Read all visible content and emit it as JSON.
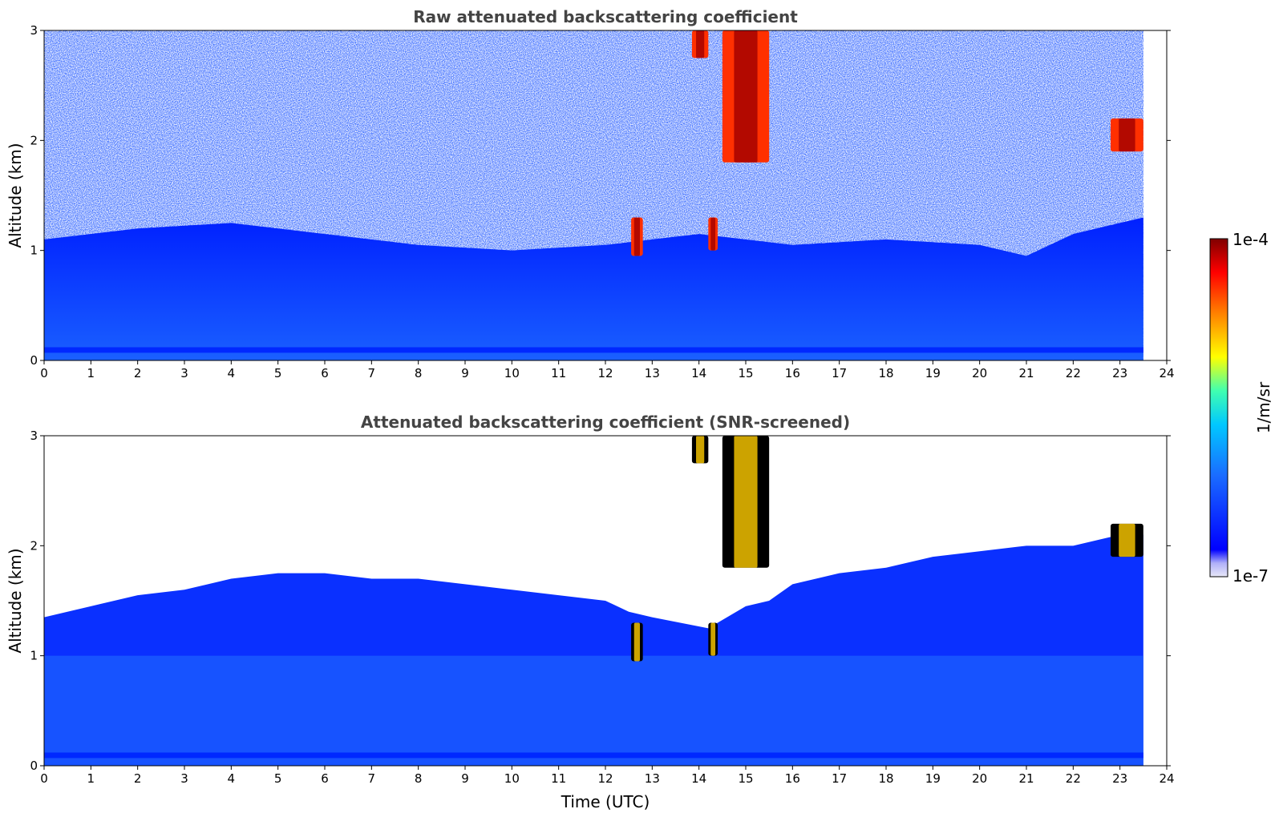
{
  "chart_data": [
    {
      "type": "heatmap",
      "title": "Raw attenuated backscattering coefficient",
      "xlabel": "",
      "ylabel": "Altitude (km)",
      "xlim": [
        0,
        24
      ],
      "ylim": [
        0,
        3
      ],
      "xticks": [
        "0",
        "1",
        "2",
        "3",
        "4",
        "5",
        "6",
        "7",
        "8",
        "9",
        "10",
        "11",
        "12",
        "13",
        "14",
        "15",
        "16",
        "17",
        "18",
        "19",
        "20",
        "21",
        "22",
        "23",
        "24"
      ],
      "yticks": [
        "0",
        "1",
        "2",
        "3"
      ],
      "data_extent_x": [
        0,
        23.5
      ],
      "boundary_layer_top_km": [
        [
          0,
          1.1
        ],
        [
          2,
          1.2
        ],
        [
          4,
          1.25
        ],
        [
          6,
          1.15
        ],
        [
          8,
          1.05
        ],
        [
          10,
          1.0
        ],
        [
          12,
          1.05
        ],
        [
          13,
          1.1
        ],
        [
          14,
          1.15
        ],
        [
          16,
          1.05
        ],
        [
          18,
          1.1
        ],
        [
          20,
          1.05
        ],
        [
          21,
          0.95
        ],
        [
          22,
          1.15
        ],
        [
          23.5,
          1.3
        ]
      ],
      "cloud_features": [
        {
          "x_start": 12.55,
          "x_end": 12.8,
          "y_bottom": 0.95,
          "y_top": 1.3
        },
        {
          "x_start": 14.2,
          "x_end": 14.4,
          "y_bottom": 1.0,
          "y_top": 1.3
        },
        {
          "x_start": 14.5,
          "x_end": 15.5,
          "y_bottom": 1.8,
          "y_top": 3.0
        },
        {
          "x_start": 13.85,
          "x_end": 14.2,
          "y_bottom": 2.75,
          "y_top": 3.0
        },
        {
          "x_start": 22.8,
          "x_end": 23.5,
          "y_bottom": 1.9,
          "y_top": 2.2
        }
      ]
    },
    {
      "type": "heatmap",
      "title": "Attenuated backscattering coefficient (SNR-screened)",
      "xlabel": "Time (UTC)",
      "ylabel": "Altitude (km)",
      "xlim": [
        0,
        24
      ],
      "ylim": [
        0,
        3
      ],
      "xticks": [
        "0",
        "1",
        "2",
        "3",
        "4",
        "5",
        "6",
        "7",
        "8",
        "9",
        "10",
        "11",
        "12",
        "13",
        "14",
        "15",
        "16",
        "17",
        "18",
        "19",
        "20",
        "21",
        "22",
        "23",
        "24"
      ],
      "yticks": [
        "0",
        "1",
        "2",
        "3"
      ],
      "data_extent_x": [
        0,
        23.5
      ],
      "screened_top_km": [
        [
          0,
          1.35
        ],
        [
          1,
          1.45
        ],
        [
          2,
          1.55
        ],
        [
          3,
          1.6
        ],
        [
          4,
          1.7
        ],
        [
          5,
          1.75
        ],
        [
          6,
          1.75
        ],
        [
          7,
          1.7
        ],
        [
          8,
          1.7
        ],
        [
          9,
          1.65
        ],
        [
          10,
          1.6
        ],
        [
          11,
          1.55
        ],
        [
          12,
          1.5
        ],
        [
          12.5,
          1.4
        ],
        [
          13,
          1.35
        ],
        [
          13.6,
          1.3
        ],
        [
          14.2,
          1.25
        ],
        [
          15,
          1.45
        ],
        [
          15.5,
          1.5
        ],
        [
          16,
          1.65
        ],
        [
          17,
          1.75
        ],
        [
          18,
          1.8
        ],
        [
          19,
          1.9
        ],
        [
          20,
          1.95
        ],
        [
          21,
          2.0
        ],
        [
          22,
          2.0
        ],
        [
          23,
          2.1
        ],
        [
          23.5,
          2.1
        ]
      ],
      "cloud_features": [
        {
          "x_start": 12.55,
          "x_end": 12.8,
          "y_bottom": 0.95,
          "y_top": 1.3
        },
        {
          "x_start": 14.2,
          "x_end": 14.4,
          "y_bottom": 1.0,
          "y_top": 1.3
        },
        {
          "x_start": 14.5,
          "x_end": 15.5,
          "y_bottom": 1.8,
          "y_top": 3.0
        },
        {
          "x_start": 13.85,
          "x_end": 14.2,
          "y_bottom": 2.75,
          "y_top": 3.0
        },
        {
          "x_start": 22.8,
          "x_end": 23.5,
          "y_bottom": 1.9,
          "y_top": 2.2
        }
      ]
    }
  ],
  "colorbar": {
    "label": "1/m/sr",
    "max_label": "1e-4",
    "min_label": "1e-7",
    "scale": "log",
    "range": [
      1e-07,
      0.0001
    ],
    "colors": [
      "#e8e8f8",
      "#0000ff",
      "#1a6cff",
      "#00c8ff",
      "#40ffb0",
      "#ffff00",
      "#ff8000",
      "#ff0000",
      "#800000"
    ]
  }
}
